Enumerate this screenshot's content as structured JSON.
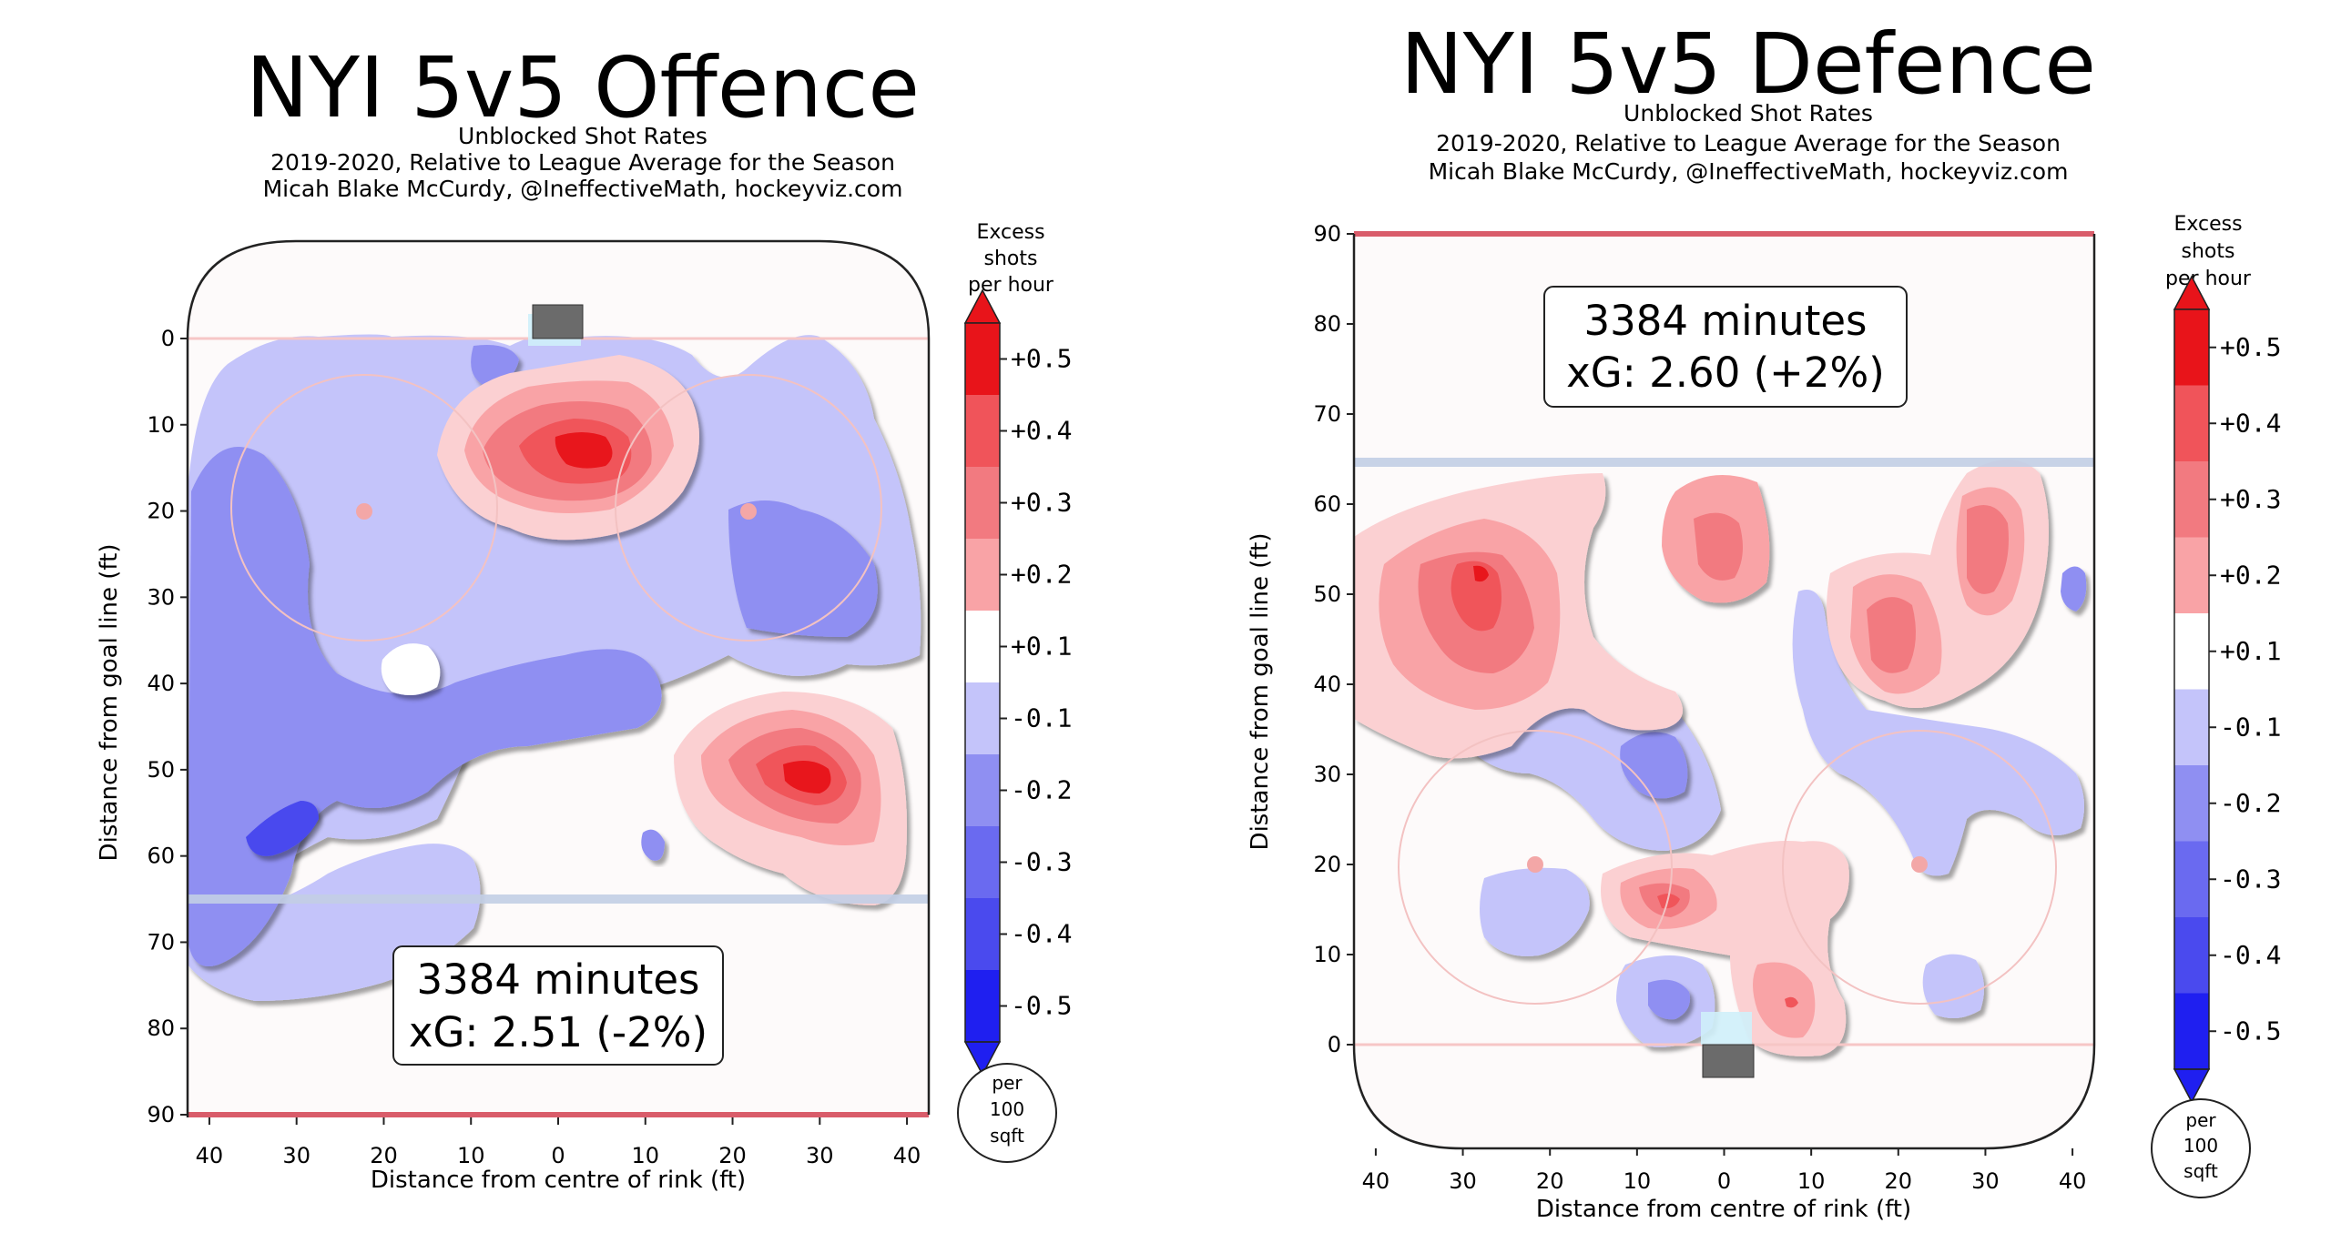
{
  "charts": [
    {
      "title": "NYI 5v5 Offence",
      "subtitle_lines": [
        "Unblocked Shot Rates",
        "2019-2020, Relative to League Average for the Season",
        "Micah Blake McCurdy, @IneffectiveMath, hockeyviz.com"
      ],
      "xlabel": "Distance from centre of rink (ft)",
      "ylabel": "Distance from goal line (ft)",
      "minutes_label": "3384 minutes",
      "xg_label": "xG: 2.51 (-2%)",
      "colorbar_title_lines": [
        "Excess",
        "shots",
        "per hour"
      ],
      "scale_label_lines": [
        "per",
        "100",
        "sqft"
      ]
    },
    {
      "title": "NYI 5v5 Defence",
      "subtitle_lines": [
        "Unblocked Shot Rates",
        "2019-2020, Relative to League Average for the Season",
        "Micah Blake McCurdy, @IneffectiveMath, hockeyviz.com"
      ],
      "xlabel": "Distance from centre of rink (ft)",
      "ylabel": "Distance from goal line (ft)",
      "minutes_label": "3384 minutes",
      "xg_label": "xG: 2.60 (+2%)",
      "colorbar_title_lines": [
        "Excess",
        "shots",
        "per hour"
      ],
      "scale_label_lines": [
        "per",
        "100",
        "sqft"
      ]
    }
  ],
  "colors": {
    "strong_red": "#e8141a",
    "red": "#f0545a",
    "light_red": "#f9a3a6",
    "neutral": "#ffffff",
    "light_blue": "#c4c4fa",
    "blue": "#8f8ff2",
    "strong_blue": "#4a4aee",
    "rink_line": "#f6c6c6",
    "blue_line": "#c3cfe6",
    "goal_line": "#d95c6a",
    "net": "#6b6b6b",
    "crease": "#cfeffa"
  },
  "chart_data": [
    {
      "type": "heatmap",
      "title": "NYI 5v5 Offence",
      "xlabel": "Distance from centre of rink (ft)",
      "ylabel": "Distance from goal line (ft)",
      "xlim": [
        -42.5,
        42.5
      ],
      "ylim": [
        89,
        -11
      ],
      "y_inverted": true,
      "xticks": [
        {
          "value": -40,
          "label": "40"
        },
        {
          "value": -30,
          "label": "30"
        },
        {
          "value": -20,
          "label": "20"
        },
        {
          "value": -10,
          "label": "10"
        },
        {
          "value": 0,
          "label": "0"
        },
        {
          "value": 10,
          "label": "10"
        },
        {
          "value": 20,
          "label": "20"
        },
        {
          "value": 30,
          "label": "30"
        },
        {
          "value": 40,
          "label": "40"
        }
      ],
      "yticks": [
        0,
        10,
        20,
        30,
        40,
        50,
        60,
        70,
        80,
        90
      ],
      "colorbar_ticks": [
        "+0.5",
        "+0.4",
        "+0.3",
        "+0.2",
        "+0.1",
        "-0.1",
        "-0.2",
        "-0.3",
        "-0.4",
        "-0.5"
      ],
      "annotation": {
        "minutes": 3384,
        "xG": 2.51,
        "relative_pct": -2
      },
      "features": [
        {
          "kind": "excess",
          "x": 4,
          "y": 12,
          "value": 0.5
        },
        {
          "kind": "excess",
          "x": 27,
          "y": 50,
          "value": 0.5
        },
        {
          "kind": "deficit",
          "x": -33,
          "y": 54,
          "value": -0.4
        },
        {
          "kind": "deficit",
          "x": -8,
          "y": 2,
          "value": -0.3
        },
        {
          "kind": "deficit",
          "x": -20,
          "y": 38,
          "value": -0.3
        },
        {
          "kind": "deficit",
          "x": 25,
          "y": 26,
          "value": -0.3
        },
        {
          "kind": "deficit",
          "x": -20,
          "y": 20,
          "value": -0.2
        },
        {
          "kind": "deficit",
          "x": 30,
          "y": 15,
          "value": -0.2
        }
      ]
    },
    {
      "type": "heatmap",
      "title": "NYI 5v5 Defence",
      "xlabel": "Distance from centre of rink (ft)",
      "ylabel": "Distance from goal line (ft)",
      "xlim": [
        -42.5,
        42.5
      ],
      "ylim": [
        -11,
        89
      ],
      "y_inverted": false,
      "xticks": [
        {
          "value": -40,
          "label": "40"
        },
        {
          "value": -30,
          "label": "30"
        },
        {
          "value": -20,
          "label": "20"
        },
        {
          "value": -10,
          "label": "10"
        },
        {
          "value": 0,
          "label": "0"
        },
        {
          "value": 10,
          "label": "10"
        },
        {
          "value": 20,
          "label": "20"
        },
        {
          "value": 30,
          "label": "30"
        },
        {
          "value": 40,
          "label": "40"
        }
      ],
      "yticks": [
        0,
        10,
        20,
        30,
        40,
        50,
        60,
        70,
        80,
        90
      ],
      "colorbar_ticks": [
        "+0.5",
        "+0.4",
        "+0.3",
        "+0.2",
        "+0.1",
        "-0.1",
        "-0.2",
        "-0.3",
        "-0.4",
        "-0.5"
      ],
      "annotation": {
        "minutes": 3384,
        "xG": 2.6,
        "relative_pct": 2
      },
      "features": [
        {
          "kind": "excess",
          "x": -30,
          "y": 52,
          "value": 0.4
        },
        {
          "kind": "excess",
          "x": -7,
          "y": 16,
          "value": 0.4
        },
        {
          "kind": "excess",
          "x": 10,
          "y": 4,
          "value": 0.3
        },
        {
          "kind": "excess",
          "x": -2,
          "y": 54,
          "value": 0.2
        },
        {
          "kind": "excess",
          "x": 18,
          "y": 45,
          "value": 0.2
        },
        {
          "kind": "excess",
          "x": 29,
          "y": 55,
          "value": 0.2
        },
        {
          "kind": "deficit",
          "x": -9,
          "y": 31,
          "value": -0.3
        },
        {
          "kind": "deficit",
          "x": -7,
          "y": 6,
          "value": -0.3
        },
        {
          "kind": "deficit",
          "x": -22,
          "y": 16,
          "value": -0.2
        },
        {
          "kind": "deficit",
          "x": 22,
          "y": 27,
          "value": -0.2
        },
        {
          "kind": "deficit",
          "x": 22,
          "y": 7,
          "value": -0.2
        },
        {
          "kind": "deficit",
          "x": 39,
          "y": 50,
          "value": -0.2
        }
      ]
    }
  ]
}
